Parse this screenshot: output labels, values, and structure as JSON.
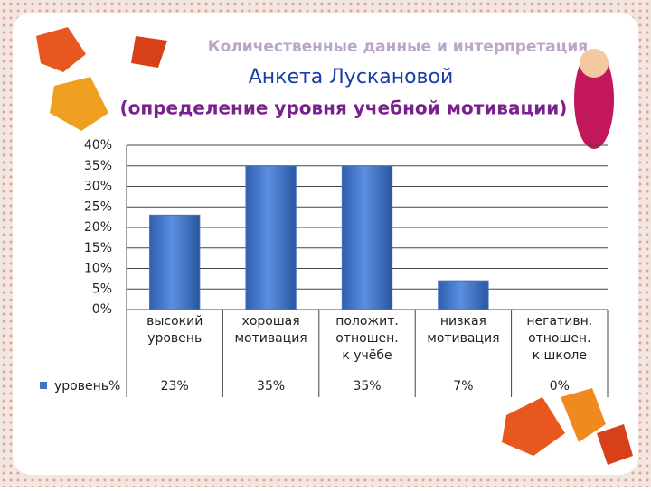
{
  "header": {
    "title": "Количественные данные и интерпретация",
    "subtitle": "Анкета Лускановой",
    "caption": "(определение уровня учебной мотивации)"
  },
  "chart_data": {
    "type": "bar",
    "categories": [
      [
        "высокий",
        "уровень"
      ],
      [
        "хорошая",
        "мотивация"
      ],
      [
        "положит.",
        "отношен.",
        "к учёбе"
      ],
      [
        "низкая",
        "мотивация"
      ],
      [
        "негативн.",
        "отношен.",
        "к школе"
      ]
    ],
    "series": [
      {
        "name": "уровень%",
        "color": "#4472c4",
        "values": [
          23,
          35,
          35,
          7,
          0
        ],
        "value_labels": [
          "23%",
          "35%",
          "35%",
          "7%",
          "0%"
        ]
      }
    ],
    "ylim": [
      0,
      40
    ],
    "yticks": [
      {
        "value": 0,
        "label": "0%"
      },
      {
        "value": 5,
        "label": "5%"
      },
      {
        "value": 10,
        "label": "10%"
      },
      {
        "value": 15,
        "label": "15%"
      },
      {
        "value": 20,
        "label": "20%"
      },
      {
        "value": 25,
        "label": "25%"
      },
      {
        "value": 30,
        "label": "30%"
      },
      {
        "value": 35,
        "label": "35%"
      },
      {
        "value": 40,
        "label": "40%"
      }
    ],
    "grid": true
  }
}
